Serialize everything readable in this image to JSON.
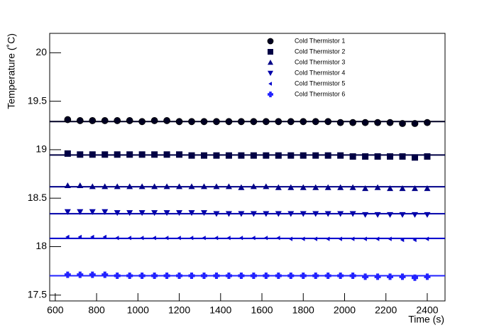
{
  "chart_data": {
    "type": "scatter",
    "x_label": "Time (s)",
    "y_label": "Temperature (˚C)",
    "xlim": [
      573,
      2486
    ],
    "ylim": [
      17.44,
      20.2
    ],
    "xticks": [
      600,
      800,
      1000,
      1200,
      1400,
      1600,
      1800,
      2000,
      2200,
      2400
    ],
    "yticks": [
      17.5,
      18,
      18.5,
      19,
      19.5,
      20
    ],
    "x": [
      660,
      720,
      780,
      840,
      900,
      960,
      1020,
      1080,
      1140,
      1200,
      1260,
      1320,
      1380,
      1440,
      1500,
      1560,
      1620,
      1680,
      1740,
      1800,
      1860,
      1920,
      1980,
      2040,
      2100,
      2160,
      2220,
      2280,
      2340,
      2400
    ],
    "series": [
      {
        "name": "Cold Thermistor 1",
        "color": "#000022",
        "marker": "circle",
        "fit": 19.29,
        "values": [
          19.31,
          19.3,
          19.3,
          19.3,
          19.3,
          19.3,
          19.29,
          19.3,
          19.3,
          19.29,
          19.29,
          19.29,
          19.29,
          19.29,
          19.29,
          19.29,
          19.29,
          19.29,
          19.29,
          19.29,
          19.29,
          19.29,
          19.28,
          19.28,
          19.28,
          19.28,
          19.28,
          19.27,
          19.27,
          19.28
        ]
      },
      {
        "name": "Cold Thermistor 2",
        "color": "#000044",
        "marker": "square",
        "fit": 18.945,
        "values": [
          18.96,
          18.95,
          18.95,
          18.95,
          18.95,
          18.95,
          18.95,
          18.95,
          18.95,
          18.95,
          18.94,
          18.94,
          18.94,
          18.94,
          18.94,
          18.94,
          18.94,
          18.94,
          18.94,
          18.94,
          18.94,
          18.94,
          18.94,
          18.93,
          18.93,
          18.93,
          18.93,
          18.93,
          18.92,
          18.93
        ]
      },
      {
        "name": "Cold Thermistor 3",
        "color": "#000088",
        "marker": "triangle-up",
        "fit": 18.618,
        "values": [
          18.63,
          18.63,
          18.62,
          18.62,
          18.62,
          18.62,
          18.62,
          18.62,
          18.62,
          18.62,
          18.62,
          18.62,
          18.62,
          18.62,
          18.61,
          18.62,
          18.62,
          18.61,
          18.61,
          18.61,
          18.61,
          18.61,
          18.61,
          18.61,
          18.6,
          18.61,
          18.6,
          18.6,
          18.6,
          18.6
        ]
      },
      {
        "name": "Cold Thermistor 4",
        "color": "#0000aa",
        "marker": "triangle-down",
        "fit": 18.34,
        "values": [
          18.36,
          18.36,
          18.36,
          18.36,
          18.35,
          18.35,
          18.35,
          18.35,
          18.35,
          18.35,
          18.35,
          18.35,
          18.34,
          18.34,
          18.34,
          18.34,
          18.34,
          18.34,
          18.34,
          18.34,
          18.34,
          18.34,
          18.34,
          18.34,
          18.33,
          18.33,
          18.33,
          18.33,
          18.33,
          18.33
        ]
      },
      {
        "name": "Cold Thermistor 5",
        "color": "#0000cc",
        "marker": "triangle-left",
        "fit": 18.085,
        "values": [
          18.1,
          18.1,
          18.1,
          18.1,
          18.09,
          18.09,
          18.09,
          18.09,
          18.09,
          18.09,
          18.09,
          18.09,
          18.09,
          18.09,
          18.09,
          18.09,
          18.09,
          18.09,
          18.08,
          18.08,
          18.08,
          18.08,
          18.08,
          18.08,
          18.08,
          18.08,
          18.08,
          18.07,
          18.07,
          18.08
        ]
      },
      {
        "name": "Cold Thermistor 6",
        "color": "#2222ff",
        "marker": "plus",
        "fit": 17.7,
        "values": [
          17.71,
          17.71,
          17.71,
          17.71,
          17.7,
          17.7,
          17.7,
          17.7,
          17.7,
          17.7,
          17.7,
          17.7,
          17.7,
          17.7,
          17.7,
          17.7,
          17.7,
          17.7,
          17.7,
          17.7,
          17.7,
          17.7,
          17.7,
          17.7,
          17.69,
          17.69,
          17.69,
          17.69,
          17.68,
          17.69
        ]
      }
    ]
  }
}
